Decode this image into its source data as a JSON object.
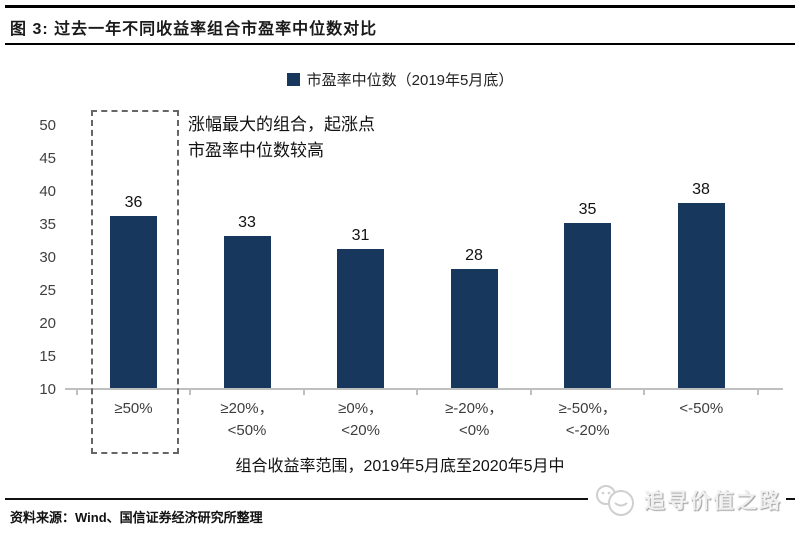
{
  "figure": {
    "title": "图 3: 过去一年不同收益率组合市盈率中位数对比",
    "source": "资料来源：Wind、国信证券经济研究所整理",
    "watermark": "追寻价值之路"
  },
  "legend": {
    "label": "市盈率中位数（2019年5月底）"
  },
  "annotation": {
    "line1": "涨幅最大的组合，起涨点",
    "line2": "市盈率中位数较高"
  },
  "chart_data": {
    "type": "bar",
    "title": "市盈率中位数（2019年5月底）",
    "categories": [
      "≥50%",
      "≥20%，<50%",
      "≥0%，<20%",
      "≥-20%，<0%",
      "≥-50%，<-20%",
      "<-50%"
    ],
    "categories_display": [
      [
        "≥50%",
        ""
      ],
      [
        "≥20%，",
        "<50%"
      ],
      [
        "≥0%，",
        "<20%"
      ],
      [
        "≥-20%，",
        "<0%"
      ],
      [
        "≥-50%，",
        "<-20%"
      ],
      [
        "<-50%",
        ""
      ]
    ],
    "values": [
      36,
      33,
      31,
      28,
      35,
      38
    ],
    "yticks": [
      50,
      45,
      40,
      35,
      30,
      25,
      20,
      15,
      10
    ],
    "ylim": [
      10,
      52
    ],
    "xlabel": "组合收益率范围，2019年5月底至2020年5月中",
    "ylabel": "",
    "grid": false,
    "legend_position": "top",
    "bar_color": "#17375D",
    "axis_color": "#BFBFBF",
    "annotation_text": "涨幅最大的组合，起涨点市盈率中位数较高",
    "highlighted_category": "≥50%"
  }
}
